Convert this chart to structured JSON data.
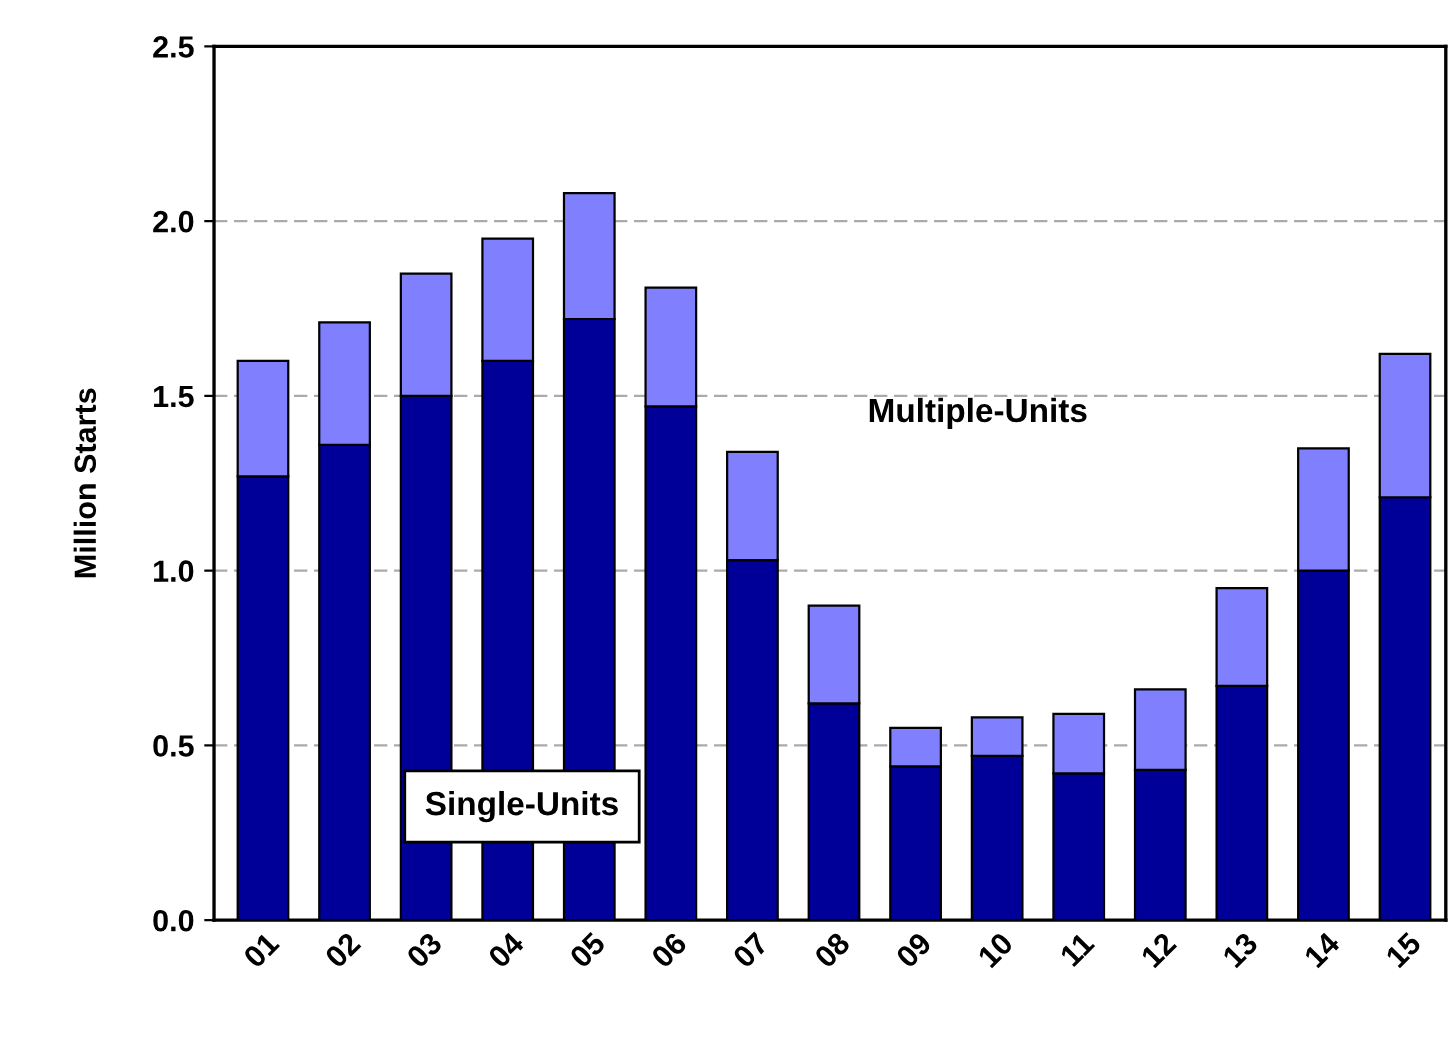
{
  "chart_data": {
    "type": "bar",
    "stacked": true,
    "ylabel": "Million Starts",
    "categories": [
      "01",
      "02",
      "03",
      "04",
      "05",
      "06",
      "07",
      "08",
      "09",
      "10",
      "11",
      "12",
      "13",
      "14",
      "15"
    ],
    "series": [
      {
        "name": "Single-Units",
        "color": "#000099",
        "values": [
          1.27,
          1.36,
          1.5,
          1.6,
          1.72,
          1.47,
          1.03,
          0.62,
          0.44,
          0.47,
          0.42,
          0.43,
          0.67,
          1.0,
          1.21
        ]
      },
      {
        "name": "Multiple-Units",
        "color": "#8080ff",
        "values": [
          0.33,
          0.35,
          0.35,
          0.35,
          0.36,
          0.34,
          0.31,
          0.28,
          0.11,
          0.11,
          0.17,
          0.23,
          0.28,
          0.35,
          0.41
        ]
      }
    ],
    "ylim": [
      0,
      2.5
    ],
    "yticks": [
      {
        "value": 0,
        "label": "0.0"
      },
      {
        "value": 0.5,
        "label": "0.5"
      },
      {
        "value": 1,
        "label": "1.0"
      },
      {
        "value": 1.5,
        "label": "1.5"
      },
      {
        "value": 2,
        "label": "2.0"
      },
      {
        "value": 2.5,
        "label": "2.5"
      }
    ],
    "grid": "y",
    "legend": false
  }
}
